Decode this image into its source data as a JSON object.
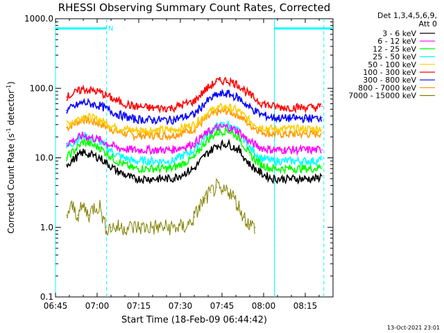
{
  "chart_data": {
    "type": "line",
    "title": "RHESSI Observing Summary Count Rates, Corrected",
    "xlabel": "Start Time (18-Feb-09 06:44:42)",
    "ylabel_main": "Corrected Count Rate (s",
    "ylabel_sup1": "-1",
    "ylabel_mid": " detector",
    "ylabel_sup2": "-1",
    "ylabel_end": ")",
    "y_scale": "log",
    "ylim": [
      0.1,
      1000
    ],
    "xlim_minutes": [
      0,
      100
    ],
    "x_tick_labels": [
      "06:45",
      "07:00",
      "07:15",
      "07:30",
      "07:45",
      "08:00",
      "08:15"
    ],
    "x_tick_minutes": [
      0,
      15,
      30,
      45,
      60,
      75,
      90
    ],
    "y_tick_labels": [
      "0.1",
      "1.0",
      "10.0",
      "100.0",
      "1000.0"
    ],
    "y_tick_values": [
      0.1,
      1,
      10,
      100,
      1000
    ],
    "legend_header_1": "Det 1,3,4,5,6,9,",
    "legend_header_2": "Att 0",
    "legend_placement": "right",
    "footer_date": "13-Oct-2021 23:01",
    "night_marker_label": "N",
    "annotations": {
      "night_intervals_minutes": [
        [
          0,
          18.4
        ],
        [
          78.9,
          100
        ]
      ],
      "dashed_lines_minutes": [
        18.4,
        78.9,
        96.7
      ]
    },
    "series": [
      {
        "name": "3 - 6 keV",
        "color": "#000000",
        "x": [
          4,
          10,
          16,
          22,
          28,
          35,
          42,
          50,
          54,
          58,
          62,
          66,
          70,
          74,
          78,
          82,
          86,
          90,
          94,
          96
        ],
        "y": [
          8,
          12,
          10,
          6.5,
          5,
          5,
          5,
          7,
          11,
          15,
          16,
          13,
          8,
          6,
          5,
          5,
          5,
          5,
          5,
          5.5
        ]
      },
      {
        "name": "6 - 12 keV",
        "color": "#ff00ff",
        "x": [
          4,
          10,
          16,
          22,
          28,
          35,
          42,
          50,
          54,
          58,
          62,
          66,
          70,
          74,
          78,
          82,
          86,
          90,
          94,
          96
        ],
        "y": [
          16,
          21,
          18,
          14,
          13,
          13,
          13,
          16,
          22,
          27,
          28,
          24,
          17,
          14,
          13,
          13,
          13,
          13,
          13,
          13
        ]
      },
      {
        "name": "12 - 25 keV",
        "color": "#00ff00",
        "x": [
          4,
          10,
          16,
          22,
          28,
          35,
          42,
          50,
          54,
          58,
          62,
          66,
          70,
          74,
          78,
          82,
          86,
          90,
          94,
          96
        ],
        "y": [
          10,
          17,
          14,
          9,
          7,
          7,
          7,
          10,
          17,
          23,
          25,
          20,
          11,
          8,
          7,
          7,
          7,
          7,
          7,
          7.5
        ]
      },
      {
        "name": "25 - 50 keV",
        "color": "#00ffff",
        "x": [
          4,
          10,
          16,
          22,
          28,
          35,
          42,
          50,
          54,
          58,
          62,
          66,
          70,
          74,
          78,
          82,
          86,
          90,
          94,
          96
        ],
        "y": [
          14,
          21,
          17,
          11,
          9,
          9,
          9,
          13,
          21,
          28,
          30,
          24,
          14,
          10,
          9,
          9,
          9,
          9,
          9,
          9.5
        ]
      },
      {
        "name": "50 - 100 keV",
        "color": "#ffcc00",
        "x": [
          4,
          10,
          16,
          22,
          28,
          35,
          42,
          50,
          54,
          58,
          62,
          66,
          70,
          74,
          78,
          82,
          86,
          90,
          94,
          96
        ],
        "y": [
          30,
          40,
          35,
          27,
          25,
          25,
          25,
          30,
          42,
          52,
          54,
          47,
          34,
          28,
          26,
          26,
          26,
          26,
          26,
          27
        ]
      },
      {
        "name": "100 - 300 keV",
        "color": "#ff0000",
        "x": [
          4,
          10,
          16,
          22,
          28,
          35,
          42,
          50,
          54,
          58,
          62,
          66,
          70,
          74,
          78,
          82,
          86,
          90,
          94,
          96
        ],
        "y": [
          75,
          98,
          88,
          66,
          55,
          52,
          52,
          65,
          95,
          125,
          130,
          112,
          80,
          62,
          55,
          53,
          53,
          53,
          53,
          55
        ]
      },
      {
        "name": "300 - 800 keV",
        "color": "#0000ff",
        "x": [
          4,
          10,
          16,
          22,
          28,
          35,
          42,
          50,
          54,
          58,
          62,
          66,
          70,
          74,
          78,
          82,
          86,
          90,
          94,
          96
        ],
        "y": [
          48,
          63,
          56,
          43,
          36,
          35,
          35,
          42,
          62,
          80,
          84,
          72,
          53,
          42,
          38,
          37,
          37,
          37,
          37,
          38
        ]
      },
      {
        "name": "800 - 7000 keV",
        "color": "#ff9900",
        "x": [
          4,
          10,
          16,
          22,
          28,
          35,
          42,
          50,
          54,
          58,
          62,
          66,
          70,
          74,
          78,
          82,
          86,
          90,
          94,
          96
        ],
        "y": [
          27,
          36,
          31,
          24,
          21,
          21,
          21,
          26,
          36,
          45,
          47,
          41,
          30,
          24,
          22,
          22,
          22,
          22,
          22,
          23
        ]
      },
      {
        "name": "7000 - 15000 keV",
        "color": "#808000",
        "x": [
          4,
          6,
          8,
          10,
          12,
          14,
          16,
          18,
          20,
          46,
          48,
          50,
          52,
          54,
          56,
          58,
          60,
          62,
          64,
          66,
          68,
          70,
          72
        ],
        "y": [
          1.5,
          2,
          1.5,
          2,
          1.5,
          2,
          2,
          1,
          1,
          1,
          1.1,
          1.4,
          2,
          2.6,
          3.2,
          3.8,
          3,
          3.6,
          2.8,
          2,
          1.4,
          1.1,
          1
        ]
      }
    ]
  }
}
